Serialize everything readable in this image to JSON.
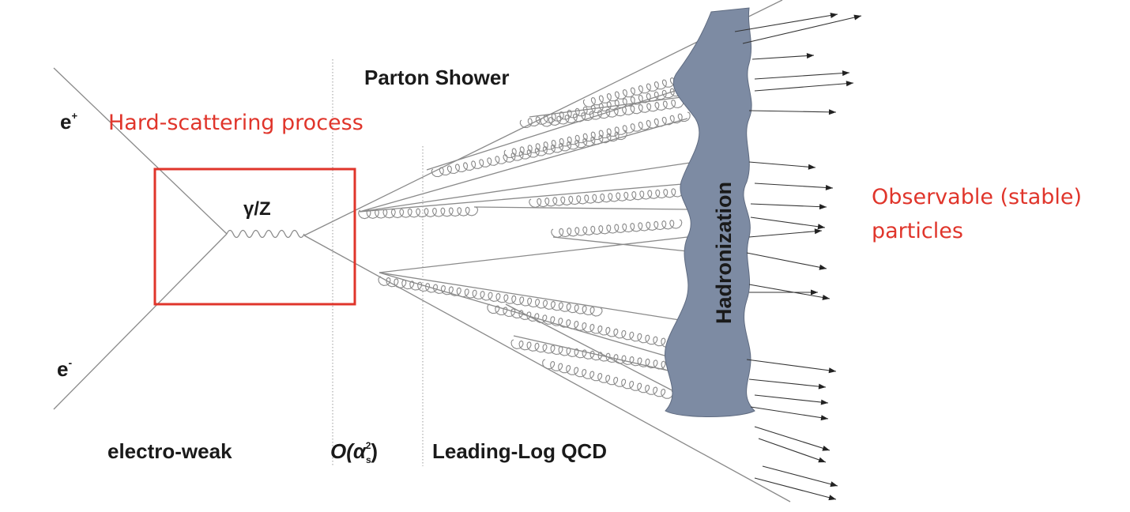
{
  "labels": {
    "e_plus": "e",
    "e_plus_sup": "+",
    "e_minus": "e",
    "e_minus_sup": "-",
    "boson": "γ/Z",
    "parton_shower": "Parton Shower",
    "electroweak": "electro-weak",
    "order_alpha": "O(α",
    "order_sub": "s",
    "order_sup": "2",
    "order_close": ")",
    "leading_log": "Leading-Log QCD",
    "hadronization": "Hadronization"
  },
  "annotations": {
    "hard_scattering": "Hard-scattering process",
    "observable_line1": "Observable (stable)",
    "observable_line2": "particles"
  },
  "colors": {
    "annotation": "#e0352b",
    "hadronization_fill": "#7d8ba3",
    "lines": "#8a8a8a"
  }
}
